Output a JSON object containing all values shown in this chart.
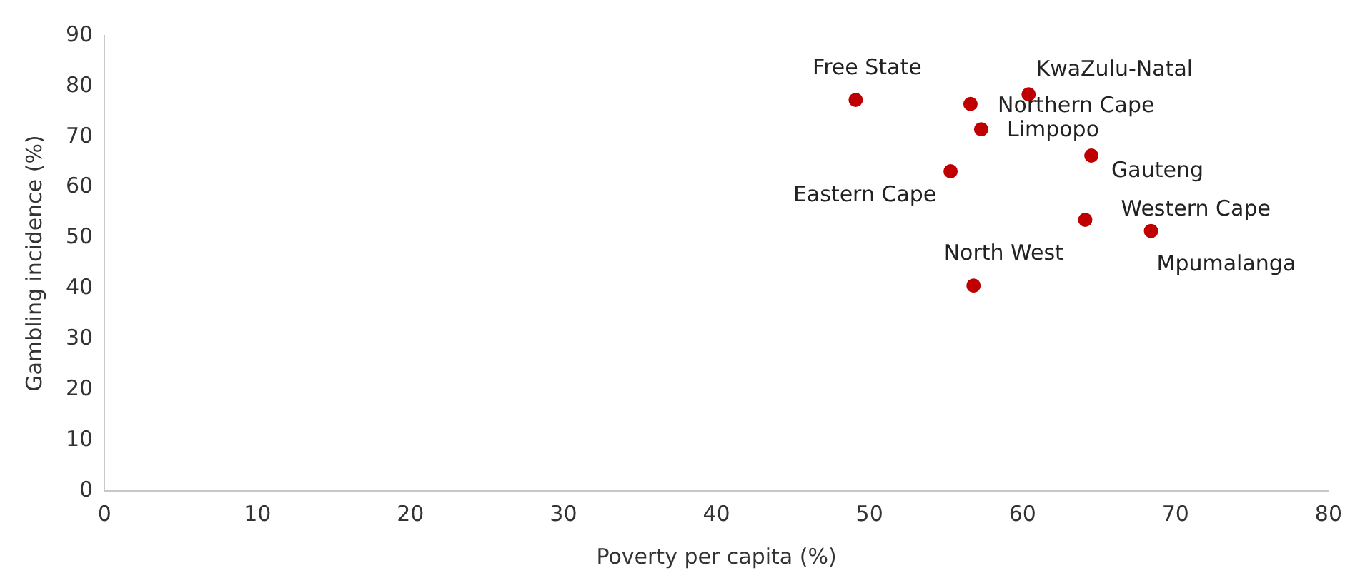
{
  "chart_data": {
    "type": "scatter",
    "xlabel": "Poverty per capita (%)",
    "ylabel": "Gambling incidence (%)",
    "x": [
      49.1,
      60.4,
      56.6,
      57.3,
      64.5,
      55.3,
      64.1,
      68.4,
      56.8
    ],
    "series": [
      {
        "color": "#c00000",
        "values": [
          77.3,
          78.4,
          76.5,
          71.5,
          66.3,
          63.2,
          53.6,
          51.4,
          40.6
        ]
      }
    ],
    "annotations": [
      {
        "text": "Free State",
        "x": 49.1,
        "y": 77.3
      },
      {
        "text": "KwaZulu-Natal",
        "x": 60.4,
        "y": 78.4
      },
      {
        "text": "Northern Cape",
        "x": 56.6,
        "y": 76.5
      },
      {
        "text": "Limpopo",
        "x": 57.3,
        "y": 71.5
      },
      {
        "text": "Gauteng",
        "x": 64.5,
        "y": 66.3
      },
      {
        "text": "Eastern Cape",
        "x": 55.3,
        "y": 63.2
      },
      {
        "text": "Western Cape",
        "x": 64.1,
        "y": 53.6
      },
      {
        "text": "Mpumalanga",
        "x": 68.4,
        "y": 51.4
      },
      {
        "text": "North West",
        "x": 56.8,
        "y": 40.6
      }
    ],
    "xlim": [
      0,
      80
    ],
    "xticks": [
      0,
      10,
      20,
      30,
      40,
      50,
      60,
      70,
      80
    ],
    "ylim": [
      0,
      90
    ],
    "yticks": [
      0,
      10,
      20,
      30,
      40,
      50,
      60,
      70,
      80,
      90
    ],
    "grid": false,
    "legend": false,
    "marker": "circle"
  }
}
